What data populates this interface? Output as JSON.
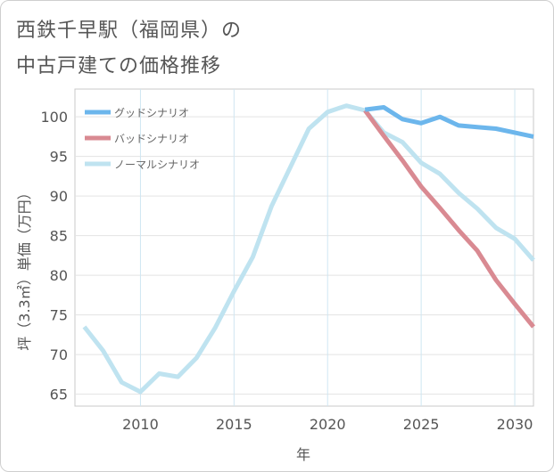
{
  "title_lines": [
    "西鉄千早駅（福岡県）の",
    "中古戸建ての価格推移"
  ],
  "chart_data": {
    "type": "line",
    "title": "西鉄千早駅（福岡県）の中古戸建ての価格推移",
    "xlabel": "年",
    "ylabel": "坪（3.3㎡）単価（万円）",
    "xlim": [
      2006.5,
      2031
    ],
    "ylim": [
      63.5,
      103.5
    ],
    "xticks": [
      2010,
      2015,
      2020,
      2025,
      2030
    ],
    "yticks": [
      65,
      70,
      75,
      80,
      85,
      90,
      95,
      100
    ],
    "grid": true,
    "legend_position": "top-left",
    "series": [
      {
        "name": "ノーマルシナリオ",
        "color": "#bfe3f0",
        "x": [
          2007,
          2008,
          2009,
          2010,
          2011,
          2012,
          2013,
          2014,
          2015,
          2016,
          2017,
          2018,
          2019,
          2020,
          2021,
          2022,
          2023,
          2024,
          2025,
          2026,
          2027,
          2028,
          2029,
          2030,
          2031
        ],
        "values": [
          73.5,
          70.5,
          66.5,
          65.3,
          67.6,
          67.2,
          69.6,
          73.4,
          78.0,
          82.3,
          88.7,
          93.6,
          98.5,
          100.6,
          101.4,
          100.8,
          98.0,
          96.8,
          94.2,
          92.8,
          90.4,
          88.4,
          86.0,
          84.6,
          81.9
        ]
      },
      {
        "name": "バッドシナリオ",
        "color": "#d98a92",
        "x": [
          2022,
          2023,
          2024,
          2025,
          2026,
          2027,
          2028,
          2029,
          2030,
          2031
        ],
        "values": [
          100.8,
          97.6,
          94.5,
          91.2,
          88.5,
          85.7,
          83.1,
          79.4,
          76.4,
          73.5
        ]
      },
      {
        "name": "グッドシナリオ",
        "color": "#6cb6ec",
        "x": [
          2022,
          2023,
          2024,
          2025,
          2026,
          2027,
          2028,
          2029,
          2030,
          2031
        ],
        "values": [
          100.9,
          101.2,
          99.7,
          99.2,
          100.0,
          98.9,
          98.7,
          98.5,
          98.0,
          97.5
        ]
      }
    ],
    "legend": [
      {
        "name": "グッドシナリオ",
        "color": "#6cb6ec"
      },
      {
        "name": "バッドシナリオ",
        "color": "#d98a92"
      },
      {
        "name": "ノーマルシナリオ",
        "color": "#bfe3f0"
      }
    ]
  }
}
